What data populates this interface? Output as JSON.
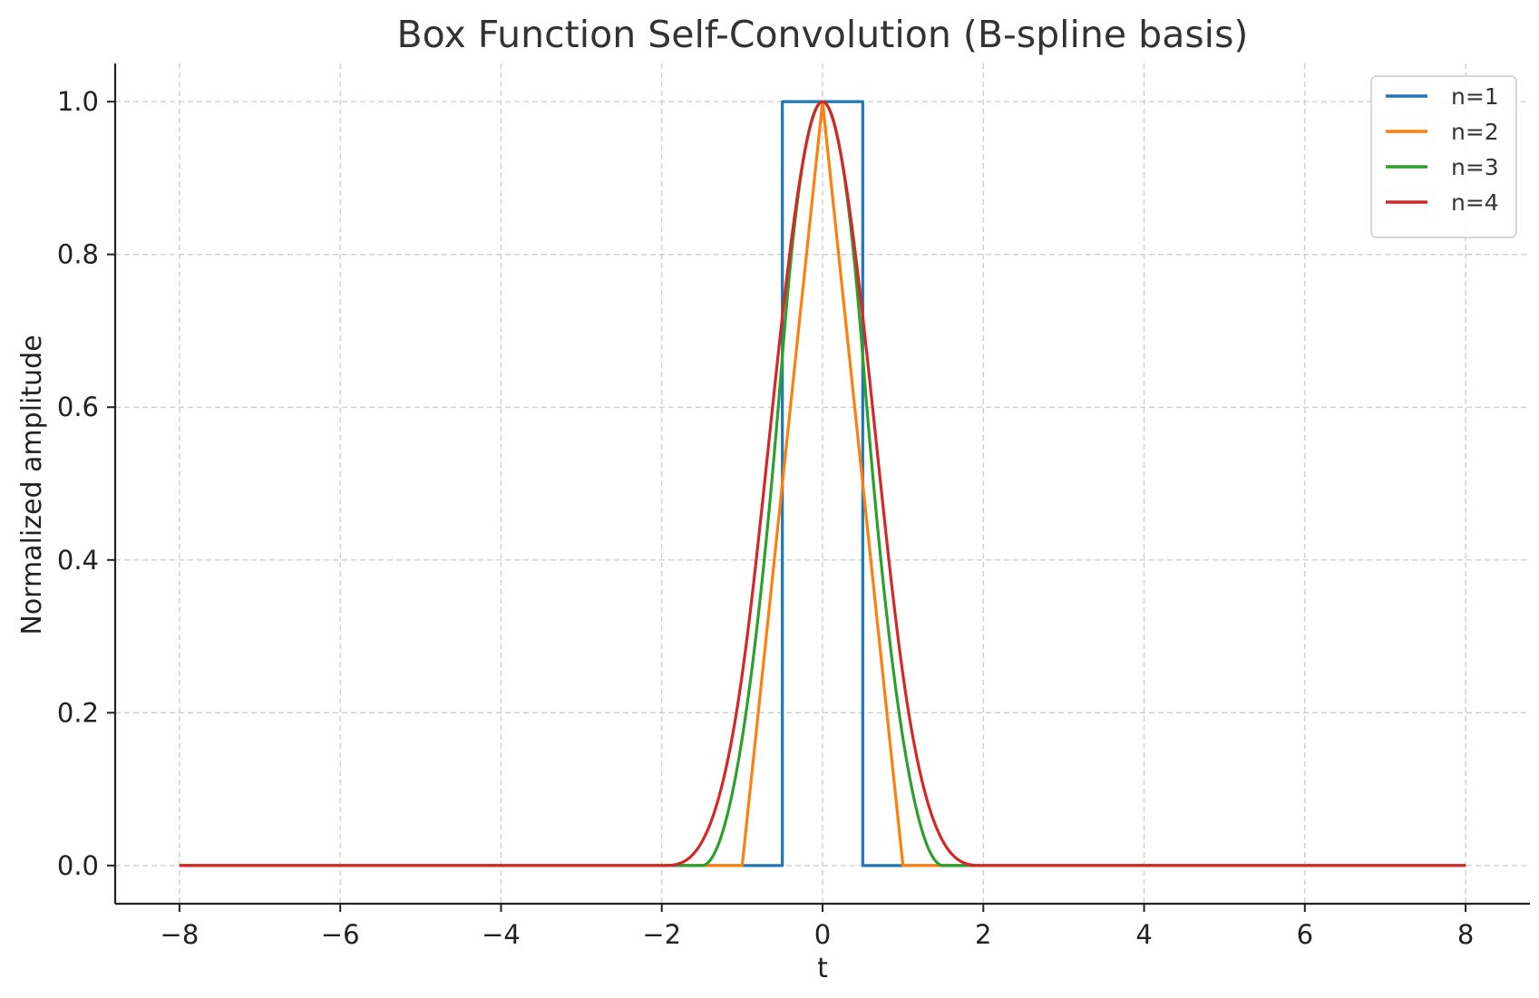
{
  "chart_data": {
    "type": "line",
    "title": "Box Function Self-Convolution (B-spline basis)",
    "xlabel": "t",
    "ylabel": "Normalized amplitude",
    "xlim": [
      -8.8,
      8.8
    ],
    "ylim": [
      -0.05,
      1.05
    ],
    "xticks": [
      -8,
      -6,
      -4,
      -2,
      0,
      2,
      4,
      6,
      8
    ],
    "xtick_labels": [
      "−8",
      "−6",
      "−4",
      "−2",
      "0",
      "2",
      "4",
      "6",
      "8"
    ],
    "yticks": [
      0.0,
      0.2,
      0.4,
      0.6,
      0.8,
      1.0
    ],
    "ytick_labels": [
      "0.0",
      "0.2",
      "0.4",
      "0.6",
      "0.8",
      "1.0"
    ],
    "grid": true,
    "legend_position": "top-right",
    "series": [
      {
        "name": "n=1",
        "color": "#1f77b4",
        "x": [
          -8,
          -0.5,
          -0.5,
          0.5,
          0.5,
          8
        ],
        "y": [
          0,
          0,
          1,
          1,
          0,
          0
        ]
      },
      {
        "name": "n=2",
        "color": "#ff7f0e",
        "x": [
          -8,
          -1,
          0,
          1,
          8
        ],
        "y": [
          0,
          0,
          1,
          0,
          0
        ]
      },
      {
        "name": "n=3",
        "color": "#2ca02c",
        "x": [
          -8,
          -1.5,
          -1.25,
          -1.0,
          -0.75,
          -0.5,
          -0.25,
          0,
          0.25,
          0.5,
          0.75,
          1.0,
          1.25,
          1.5,
          8
        ],
        "y": [
          0,
          0,
          0.042,
          0.167,
          0.375,
          0.667,
          0.875,
          1.0,
          0.875,
          0.667,
          0.375,
          0.167,
          0.042,
          0,
          0
        ]
      },
      {
        "name": "n=4",
        "color": "#d62728",
        "x": [
          -8,
          -2,
          -1.75,
          -1.5,
          -1.25,
          -1.0,
          -0.75,
          -0.5,
          -0.25,
          0,
          0.25,
          0.5,
          0.75,
          1.0,
          1.25,
          1.5,
          1.75,
          2,
          8
        ],
        "y": [
          0,
          0,
          0.003,
          0.094,
          0.063,
          0.25,
          0.469,
          0.688,
          0.906,
          1.0,
          0.906,
          0.688,
          0.469,
          0.25,
          0.063,
          0.094,
          0.003,
          0,
          0
        ]
      }
    ]
  }
}
